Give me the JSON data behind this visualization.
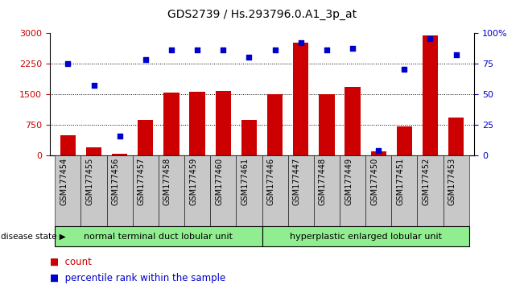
{
  "title": "GDS2739 / Hs.293796.0.A1_3p_at",
  "samples": [
    "GSM177454",
    "GSM177455",
    "GSM177456",
    "GSM177457",
    "GSM177458",
    "GSM177459",
    "GSM177460",
    "GSM177461",
    "GSM177446",
    "GSM177447",
    "GSM177448",
    "GSM177449",
    "GSM177450",
    "GSM177451",
    "GSM177452",
    "GSM177453"
  ],
  "counts": [
    500,
    200,
    30,
    870,
    1530,
    1550,
    1580,
    870,
    1490,
    2750,
    1490,
    1680,
    95,
    710,
    2930,
    920
  ],
  "percentiles": [
    75,
    57,
    16,
    78,
    86,
    86,
    86,
    80,
    86,
    92,
    86,
    87,
    4,
    70,
    95,
    82
  ],
  "group1_label": "normal terminal duct lobular unit",
  "group2_label": "hyperplastic enlarged lobular unit",
  "group1_count": 8,
  "group2_count": 8,
  "bar_color": "#cc0000",
  "dot_color": "#0000cc",
  "ylim_left": [
    0,
    3000
  ],
  "ylim_right": [
    0,
    100
  ],
  "yticks_left": [
    0,
    750,
    1500,
    2250,
    3000
  ],
  "yticks_right": [
    0,
    25,
    50,
    75,
    100
  ],
  "grid_values": [
    750,
    1500,
    2250
  ],
  "label_bg": "#c8c8c8",
  "group_bg": "#90ee90",
  "legend_count_label": "count",
  "legend_pct_label": "percentile rank within the sample",
  "disease_state_label": "disease state",
  "title_fontsize": 10,
  "tick_fontsize": 8,
  "legend_fontsize": 8.5,
  "group_fontsize": 8,
  "label_fontsize": 7
}
